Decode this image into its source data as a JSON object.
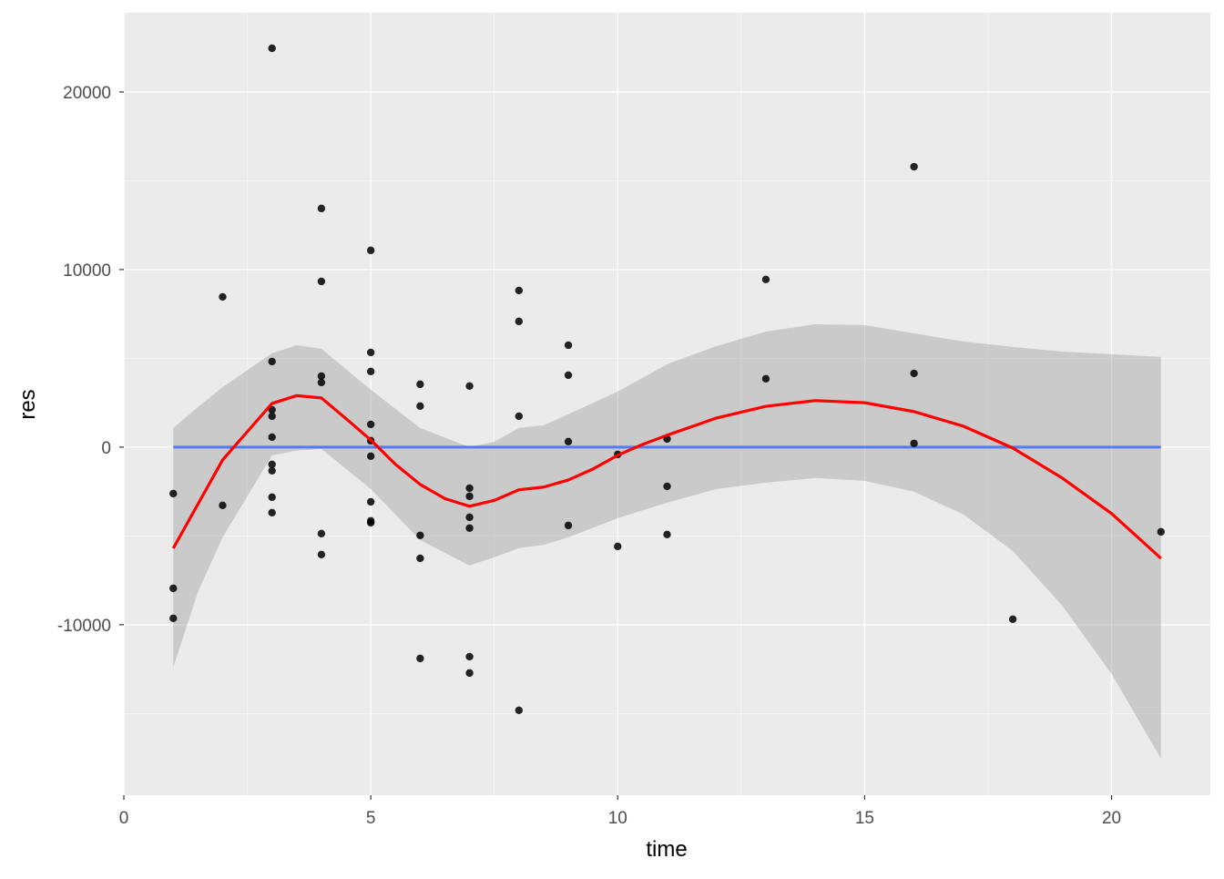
{
  "chart_data": {
    "type": "scatter",
    "title": "",
    "xlabel": "time",
    "ylabel": "res",
    "xlim": [
      0,
      22
    ],
    "ylim": [
      -19600,
      24460
    ],
    "grid": true,
    "x_ticks": [
      0,
      5,
      10,
      15,
      20
    ],
    "x_tick_labels": [
      "0",
      "5",
      "10",
      "15",
      "20"
    ],
    "y_ticks": [
      20000,
      10000,
      0,
      -10000
    ],
    "y_tick_labels": [
      "20000",
      "10000",
      "0",
      "-10000"
    ],
    "colors": {
      "panel": "#EBEBEB",
      "points": "#000000",
      "loess": "#FF0000",
      "hline": "#3366FF",
      "ribbon": "#999999"
    },
    "points": [
      [
        1,
        -2615
      ],
      [
        1,
        -7950
      ],
      [
        1,
        -9640
      ],
      [
        2,
        8460
      ],
      [
        2,
        -3280
      ],
      [
        3,
        22460
      ],
      [
        3,
        4820
      ],
      [
        3,
        2100
      ],
      [
        3,
        1740
      ],
      [
        3,
        560
      ],
      [
        3,
        -970
      ],
      [
        3,
        -1330
      ],
      [
        3,
        -2820
      ],
      [
        3,
        -3690
      ],
      [
        4,
        13440
      ],
      [
        4,
        9330
      ],
      [
        4,
        4000
      ],
      [
        4,
        3640
      ],
      [
        4,
        -4870
      ],
      [
        4,
        -6050
      ],
      [
        5,
        11080
      ],
      [
        5,
        5330
      ],
      [
        5,
        4260
      ],
      [
        5,
        1280
      ],
      [
        5,
        360
      ],
      [
        5,
        -510
      ],
      [
        5,
        -3080
      ],
      [
        5,
        -4150
      ],
      [
        5,
        -4260
      ],
      [
        6,
        3540
      ],
      [
        6,
        2310
      ],
      [
        6,
        -4970
      ],
      [
        6,
        -6260
      ],
      [
        6,
        -11900
      ],
      [
        7,
        3440
      ],
      [
        7,
        -2310
      ],
      [
        7,
        -2770
      ],
      [
        7,
        -3950
      ],
      [
        7,
        -4560
      ],
      [
        7,
        -11800
      ],
      [
        7,
        -12720
      ],
      [
        8,
        8820
      ],
      [
        8,
        7080
      ],
      [
        8,
        1740
      ],
      [
        8,
        -14820
      ],
      [
        9,
        5740
      ],
      [
        9,
        4050
      ],
      [
        9,
        310
      ],
      [
        9,
        -4410
      ],
      [
        10,
        -410
      ],
      [
        10,
        -5590
      ],
      [
        11,
        460
      ],
      [
        11,
        -2210
      ],
      [
        11,
        -4920
      ],
      [
        13,
        9440
      ],
      [
        13,
        3850
      ],
      [
        16,
        15790
      ],
      [
        16,
        4150
      ],
      [
        16,
        210
      ],
      [
        18,
        -9690
      ],
      [
        21,
        -4770
      ]
    ],
    "hline": {
      "y": 0,
      "x_range": [
        1,
        21
      ]
    },
    "loess": {
      "x": [
        1,
        2,
        3,
        3.5,
        4,
        4.5,
        5,
        5.5,
        6,
        6.5,
        7,
        7.5,
        8,
        8.5,
        9,
        9.5,
        10,
        10.5,
        11,
        12,
        13,
        14,
        15,
        16,
        17,
        18,
        19,
        20,
        21
      ],
      "y": [
        -5700,
        -720,
        2460,
        2900,
        2770,
        1600,
        400,
        -970,
        -2100,
        -2900,
        -3330,
        -3000,
        -2400,
        -2250,
        -1850,
        -1230,
        -460,
        150,
        670,
        1640,
        2300,
        2620,
        2500,
        2000,
        1180,
        -50,
        -1740,
        -3740,
        -6260
      ]
    },
    "ribbon": {
      "x": [
        1,
        1.5,
        2,
        3,
        3.5,
        4,
        5,
        6,
        7,
        7.5,
        8,
        8.5,
        9,
        10,
        11,
        12,
        13,
        14,
        15,
        16,
        17,
        18,
        19,
        20,
        21
      ],
      "upper": [
        1080,
        2250,
        3380,
        5280,
        5740,
        5540,
        3230,
        1080,
        0,
        300,
        1080,
        1230,
        1850,
        3130,
        4670,
        5690,
        6510,
        6920,
        6870,
        6410,
        5950,
        5640,
        5380,
        5230,
        5080
      ],
      "lower": [
        -12410,
        -8150,
        -5080,
        -460,
        -200,
        -100,
        -2360,
        -5230,
        -6670,
        -6200,
        -5690,
        -5500,
        -5080,
        -4000,
        -3130,
        -2360,
        -2000,
        -1740,
        -1900,
        -2510,
        -3790,
        -5850,
        -8920,
        -12770,
        -17540
      ]
    }
  }
}
